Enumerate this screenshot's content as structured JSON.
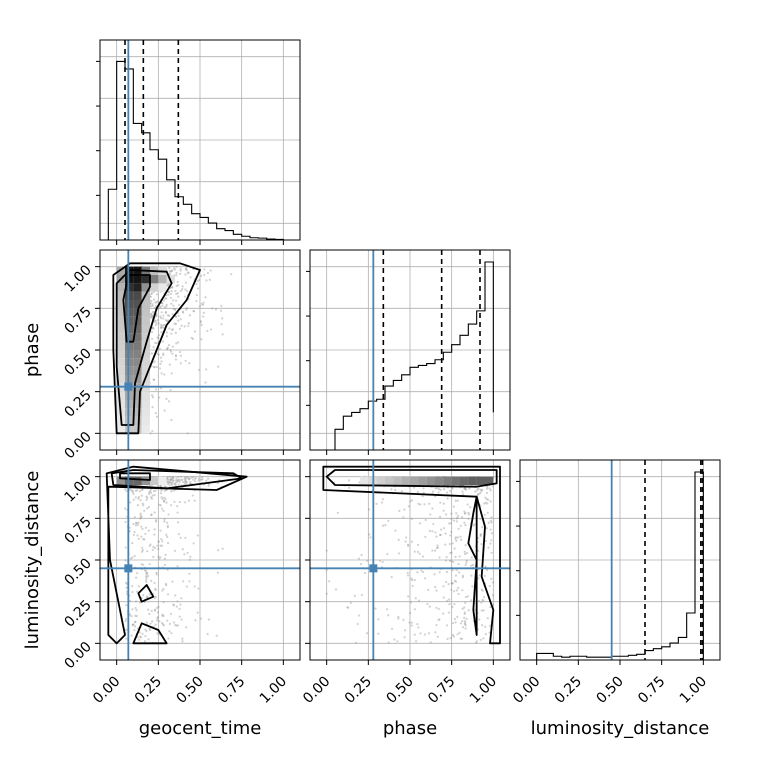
{
  "chart_data": {
    "type": "corner",
    "parameters": [
      "geocent_time",
      "phase",
      "luminosity_distance"
    ],
    "axis_labels": {
      "bottom": [
        "geocent_time",
        "phase",
        "luminosity_distance"
      ],
      "left": [
        "phase",
        "luminosity_distance"
      ]
    },
    "ticks": {
      "geocent_time": [
        "0.00",
        "0.25",
        "0.50",
        "0.75",
        "1.00"
      ],
      "phase": [
        "0.00",
        "0.25",
        "0.50",
        "0.75",
        "1.00"
      ],
      "luminosity_distance": [
        "0.00",
        "0.25",
        "0.50",
        "0.75",
        "1.00"
      ]
    },
    "range": [
      -0.1,
      1.1
    ],
    "grid": true,
    "truths": {
      "geocent_time": 0.07,
      "phase": 0.28,
      "luminosity_distance": 0.45
    },
    "truth_color": "#4682b4",
    "quantiles": {
      "geocent_time": [
        0.05,
        0.16,
        0.37
      ],
      "phase": [
        0.34,
        0.69,
        0.92
      ],
      "luminosity_distance": [
        0.65,
        0.985,
        0.995
      ]
    },
    "histograms": {
      "geocent_time": {
        "edges": [
          -0.05,
          0.0,
          0.05,
          0.1,
          0.15,
          0.2,
          0.25,
          0.3,
          0.35,
          0.4,
          0.45,
          0.5,
          0.55,
          0.6,
          0.65,
          0.7,
          0.75,
          0.8,
          0.85,
          0.9,
          0.95,
          1.0
        ],
        "counts": [
          0.27,
          0.95,
          0.91,
          0.62,
          0.57,
          0.48,
          0.43,
          0.32,
          0.23,
          0.19,
          0.14,
          0.12,
          0.09,
          0.06,
          0.05,
          0.03,
          0.02,
          0.012,
          0.01,
          0.005,
          0.003
        ]
      },
      "phase": {
        "edges": [
          0.0,
          0.05,
          0.1,
          0.15,
          0.2,
          0.25,
          0.3,
          0.35,
          0.4,
          0.45,
          0.5,
          0.55,
          0.6,
          0.65,
          0.7,
          0.75,
          0.8,
          0.85,
          0.9,
          0.95,
          1.0
        ],
        "counts": [
          0.0,
          0.11,
          0.18,
          0.2,
          0.22,
          0.26,
          0.27,
          0.34,
          0.37,
          0.4,
          0.44,
          0.45,
          0.46,
          0.48,
          0.52,
          0.56,
          0.61,
          0.67,
          0.74,
          1.0,
          0.2
        ]
      },
      "luminosity_distance": {
        "edges": [
          0.0,
          0.05,
          0.1,
          0.15,
          0.2,
          0.25,
          0.3,
          0.35,
          0.4,
          0.45,
          0.5,
          0.55,
          0.6,
          0.65,
          0.7,
          0.75,
          0.8,
          0.85,
          0.9,
          0.95,
          1.0
        ],
        "counts": [
          0.035,
          0.035,
          0.02,
          0.015,
          0.02,
          0.02,
          0.015,
          0.015,
          0.015,
          0.02,
          0.02,
          0.025,
          0.03,
          0.05,
          0.06,
          0.07,
          0.09,
          0.12,
          0.25,
          1.0,
          0.0
        ]
      }
    },
    "pairs": [
      {
        "x": "geocent_time",
        "y": "phase"
      },
      {
        "x": "geocent_time",
        "y": "luminosity_distance"
      },
      {
        "x": "phase",
        "y": "luminosity_distance"
      }
    ]
  }
}
